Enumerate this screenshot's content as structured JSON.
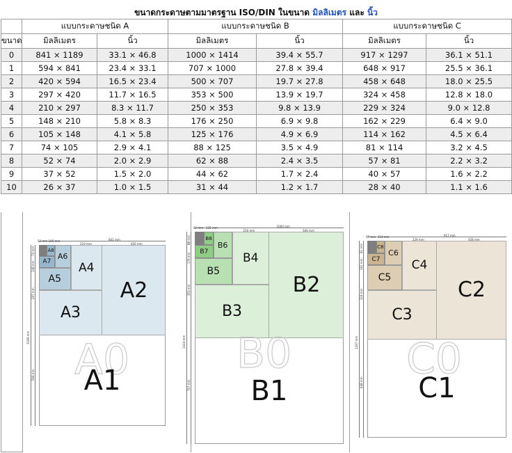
{
  "title": {
    "prefix": "ขนาดกระดาษตามมาตรฐาน ISO/DIN ในขนาด ",
    "mm": "มิลลิเมตร",
    "and": " และ ",
    "inch": "นิ้ว"
  },
  "table": {
    "size_header": "ขนาด",
    "series": [
      "แบบกระดาษชนิด A",
      "แบบกระดาษชนิด B",
      "แบบกระดาษชนิด C"
    ],
    "unit_mm": "มิลลิเมตร",
    "unit_in": "นิ้ว",
    "rows": [
      {
        "size": "0",
        "a_mm": "841 × 1189",
        "a_in": "33.1 × 46.8",
        "b_mm": "1000 × 1414",
        "b_in": "39.4 × 55.7",
        "c_mm": "917 × 1297",
        "c_in": "36.1 × 51.1"
      },
      {
        "size": "1",
        "a_mm": "594 × 841",
        "a_in": "23.4 × 33.1",
        "b_mm": "707 × 1000",
        "b_in": "27.8 × 39.4",
        "c_mm": "648 × 917",
        "c_in": "25.5 × 36.1"
      },
      {
        "size": "2",
        "a_mm": "420 × 594",
        "a_in": "16.5 × 23.4",
        "b_mm": "500 × 707",
        "b_in": "19.7 × 27.8",
        "c_mm": "458 × 648",
        "c_in": "18.0 × 25.5"
      },
      {
        "size": "3",
        "a_mm": "297 × 420",
        "a_in": "11.7 × 16.5",
        "b_mm": "353 × 500",
        "b_in": "13.9 × 19.7",
        "c_mm": "324 × 458",
        "c_in": "12.8 × 18.0"
      },
      {
        "size": "4",
        "a_mm": "210 × 297",
        "a_in": "8.3 × 11.7",
        "b_mm": "250 × 353",
        "b_in": "9.8 × 13.9",
        "c_mm": "229 × 324",
        "c_in": "9.0 × 12.8"
      },
      {
        "size": "5",
        "a_mm": "148 × 210",
        "a_in": "5.8 × 8.3",
        "b_mm": "176 × 250",
        "b_in": "6.9 × 9.8",
        "c_mm": "162 × 229",
        "c_in": "6.4 × 9.0"
      },
      {
        "size": "6",
        "a_mm": "105 × 148",
        "a_in": "4.1 × 5.8",
        "b_mm": "125 × 176",
        "b_in": "4.9 × 6.9",
        "c_mm": "114 × 162",
        "c_in": "4.5 × 6.4"
      },
      {
        "size": "7",
        "a_mm": "74 × 105",
        "a_in": "2.9 × 4.1",
        "b_mm": "88 × 125",
        "b_in": "3.5 × 4.9",
        "c_mm": "81 × 114",
        "c_in": "3.2 × 4.5"
      },
      {
        "size": "8",
        "a_mm": "52 × 74",
        "a_in": "2.0 × 2.9",
        "b_mm": "62 × 88",
        "b_in": "2.4 × 3.5",
        "c_mm": "57 × 81",
        "c_in": "2.2 × 3.2"
      },
      {
        "size": "9",
        "a_mm": "37 × 52",
        "a_in": "1.5 × 2.0",
        "b_mm": "44 × 62",
        "b_in": "1.7 × 2.4",
        "c_mm": "40 × 57",
        "c_in": "1.6 × 2.2"
      },
      {
        "size": "10",
        "a_mm": "26 × 37",
        "a_in": "1.0 × 1.5",
        "b_mm": "31 × 44",
        "b_in": "1.2 × 1.7",
        "c_mm": "28 × 40",
        "c_in": "1.1 × 1.6"
      }
    ]
  },
  "diagrams": [
    {
      "series": "A",
      "labels": {
        "s0": "A0",
        "s1": "A1",
        "s2": "A2",
        "s3": "A3",
        "s4": "A4",
        "s5": "A5",
        "s6": "A6",
        "s7": "A7",
        "s8": "A8"
      },
      "dims": {
        "w0": "841 mm",
        "w_half": "420 mm",
        "w_quarter": "210 mm",
        "w8": "52 mm",
        "w7": "105 mm",
        "h_total": "1189 mm",
        "h1": "594 mm",
        "h3": "297 mm",
        "h5": "148 mm",
        "h7": "74 mm"
      },
      "fill": "#dbe8f0",
      "fill_dark": "#b7cedd",
      "fill_darker": "#99b7cc"
    },
    {
      "series": "B",
      "labels": {
        "s0": "B0",
        "s1": "B1",
        "s2": "B2",
        "s3": "B3",
        "s4": "B4",
        "s5": "B5",
        "s6": "B6",
        "s7": "B7",
        "s8": "B8"
      },
      "dims": {
        "w0": "1000 mm",
        "w_half": "500 mm",
        "w_quarter": "250 mm",
        "w8": "62 mm",
        "w7": "125 mm",
        "h_total": "1414 mm",
        "h1": "707 mm",
        "h3": "353 mm",
        "h5": "176 mm",
        "h7": "88 mm"
      },
      "fill": "#dcefd9",
      "fill_dark": "#b9e0b3",
      "fill_darker": "#8fcc86"
    },
    {
      "series": "C",
      "labels": {
        "s0": "C0",
        "s1": "C1",
        "s2": "C2",
        "s3": "C3",
        "s4": "C4",
        "s5": "C5",
        "s6": "C6",
        "s7": "C7",
        "s8": "C8"
      },
      "dims": {
        "w0": "917 mm",
        "w_half": "458 mm",
        "w_quarter": "229 mm",
        "w8": "57 mm",
        "w7": "114 mm",
        "h_total": "1297 mm",
        "h1": "648 mm",
        "h3": "324 mm",
        "h5": "162 mm",
        "h7": "81 mm"
      },
      "fill": "#ece4d6",
      "fill_dark": "#dccdb3",
      "fill_darker": "#c9b48f"
    }
  ]
}
